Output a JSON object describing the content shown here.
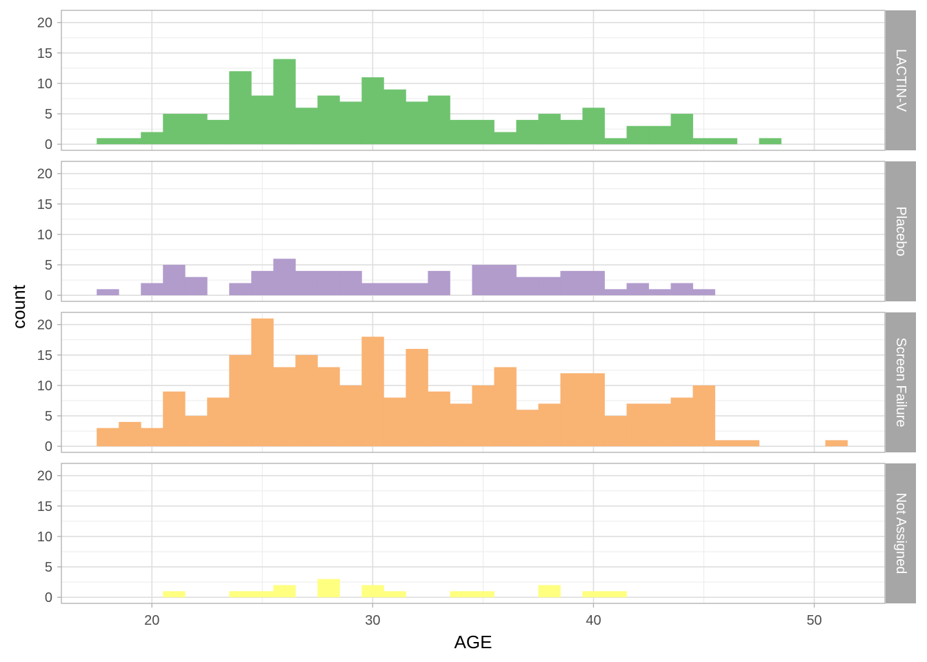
{
  "chart_data": {
    "type": "bar",
    "xlabel": "AGE",
    "ylabel": "count",
    "xlim": [
      15.9,
      53.2
    ],
    "ylim": [
      -1,
      22
    ],
    "x_ticks": [
      20,
      30,
      40,
      50
    ],
    "y_ticks": [
      0,
      5,
      10,
      15,
      20
    ],
    "bin_width": 1,
    "bin_starts": [
      17.5,
      18.5,
      19.5,
      20.5,
      21.5,
      22.5,
      23.5,
      24.5,
      25.5,
      26.5,
      27.5,
      28.5,
      29.5,
      30.5,
      31.5,
      32.5,
      33.5,
      34.5,
      35.5,
      36.5,
      37.5,
      38.5,
      39.5,
      40.5,
      41.5,
      42.5,
      43.5,
      44.5,
      45.5,
      46.5,
      47.5,
      48.5,
      49.5,
      50.5
    ],
    "grid": true,
    "facets": [
      {
        "label": "LACTIN-V",
        "color": "#6fc36f",
        "values": [
          1,
          1,
          2,
          5,
          5,
          4,
          12,
          8,
          14,
          6,
          8,
          7,
          11,
          9,
          7,
          8,
          4,
          4,
          2,
          4,
          5,
          4,
          6,
          1,
          3,
          3,
          5,
          1,
          1,
          0,
          1,
          0,
          0,
          0
        ]
      },
      {
        "label": "Placebo",
        "color": "#b19ccc",
        "values": [
          1,
          0,
          2,
          5,
          3,
          0,
          2,
          4,
          6,
          4,
          4,
          4,
          2,
          2,
          2,
          4,
          0,
          5,
          5,
          3,
          3,
          4,
          4,
          1,
          2,
          1,
          2,
          1,
          0,
          0,
          0,
          0,
          0,
          0
        ]
      },
      {
        "label": "Screen Failure",
        "color": "#f9b373",
        "values": [
          3,
          4,
          3,
          9,
          5,
          8,
          15,
          21,
          13,
          15,
          13,
          10,
          18,
          8,
          16,
          9,
          7,
          10,
          13,
          6,
          7,
          12,
          12,
          5,
          7,
          7,
          8,
          10,
          1,
          1,
          0,
          0,
          0,
          1
        ]
      },
      {
        "label": "Not Assigned",
        "color": "#ffff80",
        "values": [
          0,
          0,
          0,
          1,
          0,
          0,
          1,
          1,
          2,
          0,
          3,
          0,
          2,
          1,
          0,
          0,
          1,
          1,
          0,
          0,
          2,
          0,
          1,
          1,
          0,
          0,
          0,
          0,
          0,
          0,
          0,
          0,
          0,
          0
        ]
      }
    ]
  }
}
